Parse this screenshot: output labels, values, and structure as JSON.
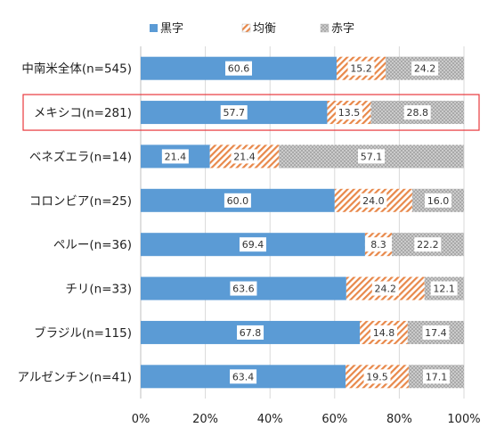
{
  "chart_data": {
    "type": "bar",
    "orientation": "horizontal",
    "stacked": "percent",
    "legend_position": "top",
    "grid": true,
    "xlim": [
      0,
      100
    ],
    "x_ticks": [
      "0%",
      "20%",
      "40%",
      "60%",
      "80%",
      "100%"
    ],
    "highlighted_category": "メキシコ(n=281)",
    "categories": [
      "中南米全体(n=545)",
      "メキシコ(n=281)",
      "ベネズエラ(n=14)",
      "コロンビア(n=25)",
      "ペルー(n=36)",
      "チリ(n=33)",
      "ブラジル(n=115)",
      "アルゼンチン(n=41)"
    ],
    "series": [
      {
        "name": "黒字",
        "color": "#5b9bd5",
        "pattern": "solid",
        "values": [
          60.6,
          57.7,
          21.4,
          60.0,
          69.4,
          63.6,
          67.8,
          63.4
        ]
      },
      {
        "name": "均衡",
        "color": "#ed7d31",
        "pattern": "diagonal",
        "values": [
          15.2,
          13.5,
          21.4,
          24.0,
          8.3,
          24.2,
          14.8,
          19.5
        ]
      },
      {
        "name": "赤字",
        "color": "#a5a5a5",
        "pattern": "dots",
        "values": [
          24.2,
          28.8,
          57.1,
          16.0,
          22.2,
          12.1,
          17.4,
          17.1
        ]
      }
    ],
    "label_format": "0.0"
  }
}
